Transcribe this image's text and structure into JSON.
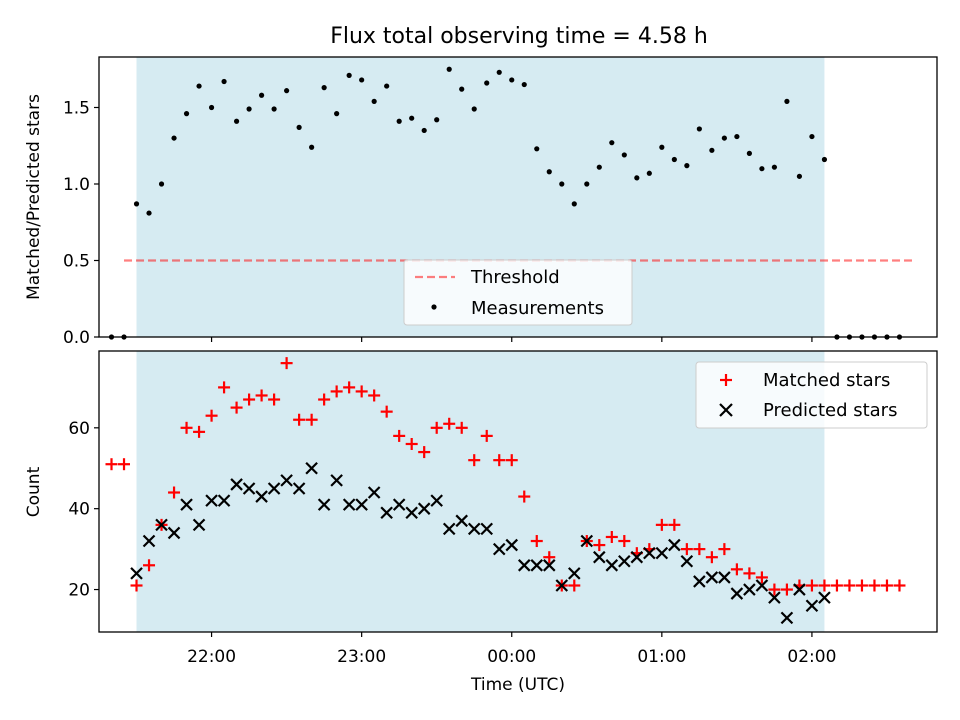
{
  "figure": {
    "title": "Flux total observing time = 4.58 h"
  },
  "colors": {
    "observing_span": "#add8e6",
    "threshold": "#ff0000",
    "measurements": "#000000",
    "matched": "#ff0000",
    "predicted": "#000000"
  },
  "chart_data": [
    {
      "type": "scatter",
      "ylabel": "Matched/Predicted stars",
      "xlim": [
        "21:15",
        "02:50"
      ],
      "ylim": [
        0,
        1.83
      ],
      "yticks": [
        "0.0",
        "0.5",
        "1.0",
        "1.5"
      ],
      "grid": false,
      "legend_position": "bottom-center",
      "shaded_span": {
        "start": "21:30",
        "end": "02:05"
      },
      "threshold": {
        "name": "Threshold",
        "value": 0.5,
        "x_start": "21:25",
        "x_end": "02:40",
        "style": "dashed"
      },
      "series": [
        {
          "name": "Measurements",
          "marker": "dot",
          "x": [
            "21:25",
            "21:30",
            "21:35",
            "21:40",
            "21:45",
            "21:50",
            "21:55",
            "22:00",
            "22:05",
            "22:10",
            "22:15",
            "22:20",
            "22:25",
            "22:30",
            "22:35",
            "22:40",
            "22:45",
            "22:50",
            "22:55",
            "23:00",
            "23:05",
            "23:10",
            "23:15",
            "23:20",
            "23:25",
            "23:30",
            "23:35",
            "23:40",
            "23:45",
            "23:50",
            "23:55",
            "00:00",
            "00:05",
            "00:10",
            "00:15",
            "00:20",
            "00:25",
            "00:30",
            "00:35",
            "00:40",
            "00:45",
            "00:50",
            "00:55",
            "01:00",
            "01:05",
            "01:10",
            "01:15",
            "01:20",
            "01:25",
            "01:30",
            "01:35",
            "01:40",
            "01:45",
            "01:50",
            "01:55",
            "02:00",
            "02:05",
            "02:10",
            "02:15",
            "02:20",
            "02:25",
            "02:30",
            "02:35"
          ],
          "y": [
            0.0,
            0.87,
            0.81,
            1.0,
            1.3,
            1.46,
            1.64,
            1.5,
            1.67,
            1.41,
            1.49,
            1.58,
            1.49,
            1.61,
            1.37,
            1.24,
            1.63,
            1.46,
            1.71,
            1.68,
            1.54,
            1.64,
            1.41,
            1.43,
            1.35,
            1.42,
            1.75,
            1.62,
            1.49,
            1.66,
            1.73,
            1.68,
            1.65,
            1.23,
            1.08,
            1.0,
            0.87,
            1.0,
            1.11,
            1.27,
            1.19,
            1.04,
            1.07,
            1.24,
            1.16,
            1.12,
            1.36,
            1.22,
            1.3,
            1.31,
            1.2,
            1.1,
            1.11,
            1.54,
            1.05,
            1.31,
            1.16,
            0.0,
            0.0,
            0.0,
            0.0,
            0.0,
            0.0
          ],
          "extra_points": [
            {
              "x": "21:20",
              "y": 0.0
            }
          ]
        }
      ]
    },
    {
      "type": "scatter",
      "xlabel": "Time (UTC)",
      "ylabel": "Count",
      "xlim": [
        "21:15",
        "02:50"
      ],
      "ylim": [
        9.5,
        79
      ],
      "yticks": [
        "20",
        "40",
        "60"
      ],
      "xticks": [
        "22:00",
        "23:00",
        "00:00",
        "01:00",
        "02:00"
      ],
      "grid": false,
      "legend_position": "top-right",
      "shaded_span": {
        "start": "21:30",
        "end": "02:05"
      },
      "series": [
        {
          "name": "Matched stars",
          "marker": "plus",
          "x": [
            "21:20",
            "21:25",
            "21:30",
            "21:35",
            "21:40",
            "21:45",
            "21:50",
            "21:55",
            "22:00",
            "22:05",
            "22:10",
            "22:15",
            "22:20",
            "22:25",
            "22:30",
            "22:35",
            "22:40",
            "22:45",
            "22:50",
            "22:55",
            "23:00",
            "23:05",
            "23:10",
            "23:15",
            "23:20",
            "23:25",
            "23:30",
            "23:35",
            "23:40",
            "23:45",
            "23:50",
            "23:55",
            "00:00",
            "00:05",
            "00:10",
            "00:15",
            "00:20",
            "00:25",
            "00:30",
            "00:35",
            "00:40",
            "00:45",
            "00:50",
            "00:55",
            "01:00",
            "01:05",
            "01:10",
            "01:15",
            "01:20",
            "01:25",
            "01:30",
            "01:35",
            "01:40",
            "01:45",
            "01:50",
            "01:55",
            "02:00",
            "02:05",
            "02:10",
            "02:15",
            "02:20",
            "02:25",
            "02:30",
            "02:35"
          ],
          "y": [
            51,
            51,
            21,
            26,
            36,
            44,
            60,
            59,
            63,
            70,
            65,
            67,
            68,
            67,
            76,
            62,
            62,
            67,
            69,
            70,
            69,
            68,
            64,
            58,
            56,
            54,
            60,
            61,
            60,
            52,
            58,
            52,
            52,
            43,
            32,
            28,
            21,
            21,
            32,
            31,
            33,
            32,
            29,
            30,
            36,
            36,
            30,
            30,
            28,
            30,
            25,
            24,
            23,
            20,
            20,
            21,
            21,
            21,
            21,
            21,
            21,
            21,
            21,
            21
          ]
        },
        {
          "name": "Predicted stars",
          "marker": "x",
          "x": [
            "21:30",
            "21:35",
            "21:40",
            "21:45",
            "21:50",
            "21:55",
            "22:00",
            "22:05",
            "22:10",
            "22:15",
            "22:20",
            "22:25",
            "22:30",
            "22:35",
            "22:40",
            "22:45",
            "22:50",
            "22:55",
            "23:00",
            "23:05",
            "23:10",
            "23:15",
            "23:20",
            "23:25",
            "23:30",
            "23:35",
            "23:40",
            "23:45",
            "23:50",
            "23:55",
            "00:00",
            "00:05",
            "00:10",
            "00:15",
            "00:20",
            "00:25",
            "00:30",
            "00:35",
            "00:40",
            "00:45",
            "00:50",
            "00:55",
            "01:00",
            "01:05",
            "01:10",
            "01:15",
            "01:20",
            "01:25",
            "01:30",
            "01:35",
            "01:40",
            "01:45",
            "01:50",
            "01:55",
            "02:00",
            "02:05"
          ],
          "y": [
            24,
            32,
            36,
            34,
            41,
            36,
            42,
            42,
            46,
            45,
            43,
            45,
            47,
            45,
            50,
            41,
            47,
            41,
            41,
            44,
            39,
            41,
            39,
            40,
            42,
            35,
            37,
            35,
            35,
            30,
            31,
            26,
            26,
            26,
            21,
            24,
            32,
            28,
            26,
            27,
            28,
            29,
            29,
            31,
            27,
            22,
            23,
            23,
            19,
            20,
            21,
            18,
            13,
            20,
            16,
            18
          ]
        }
      ]
    }
  ]
}
